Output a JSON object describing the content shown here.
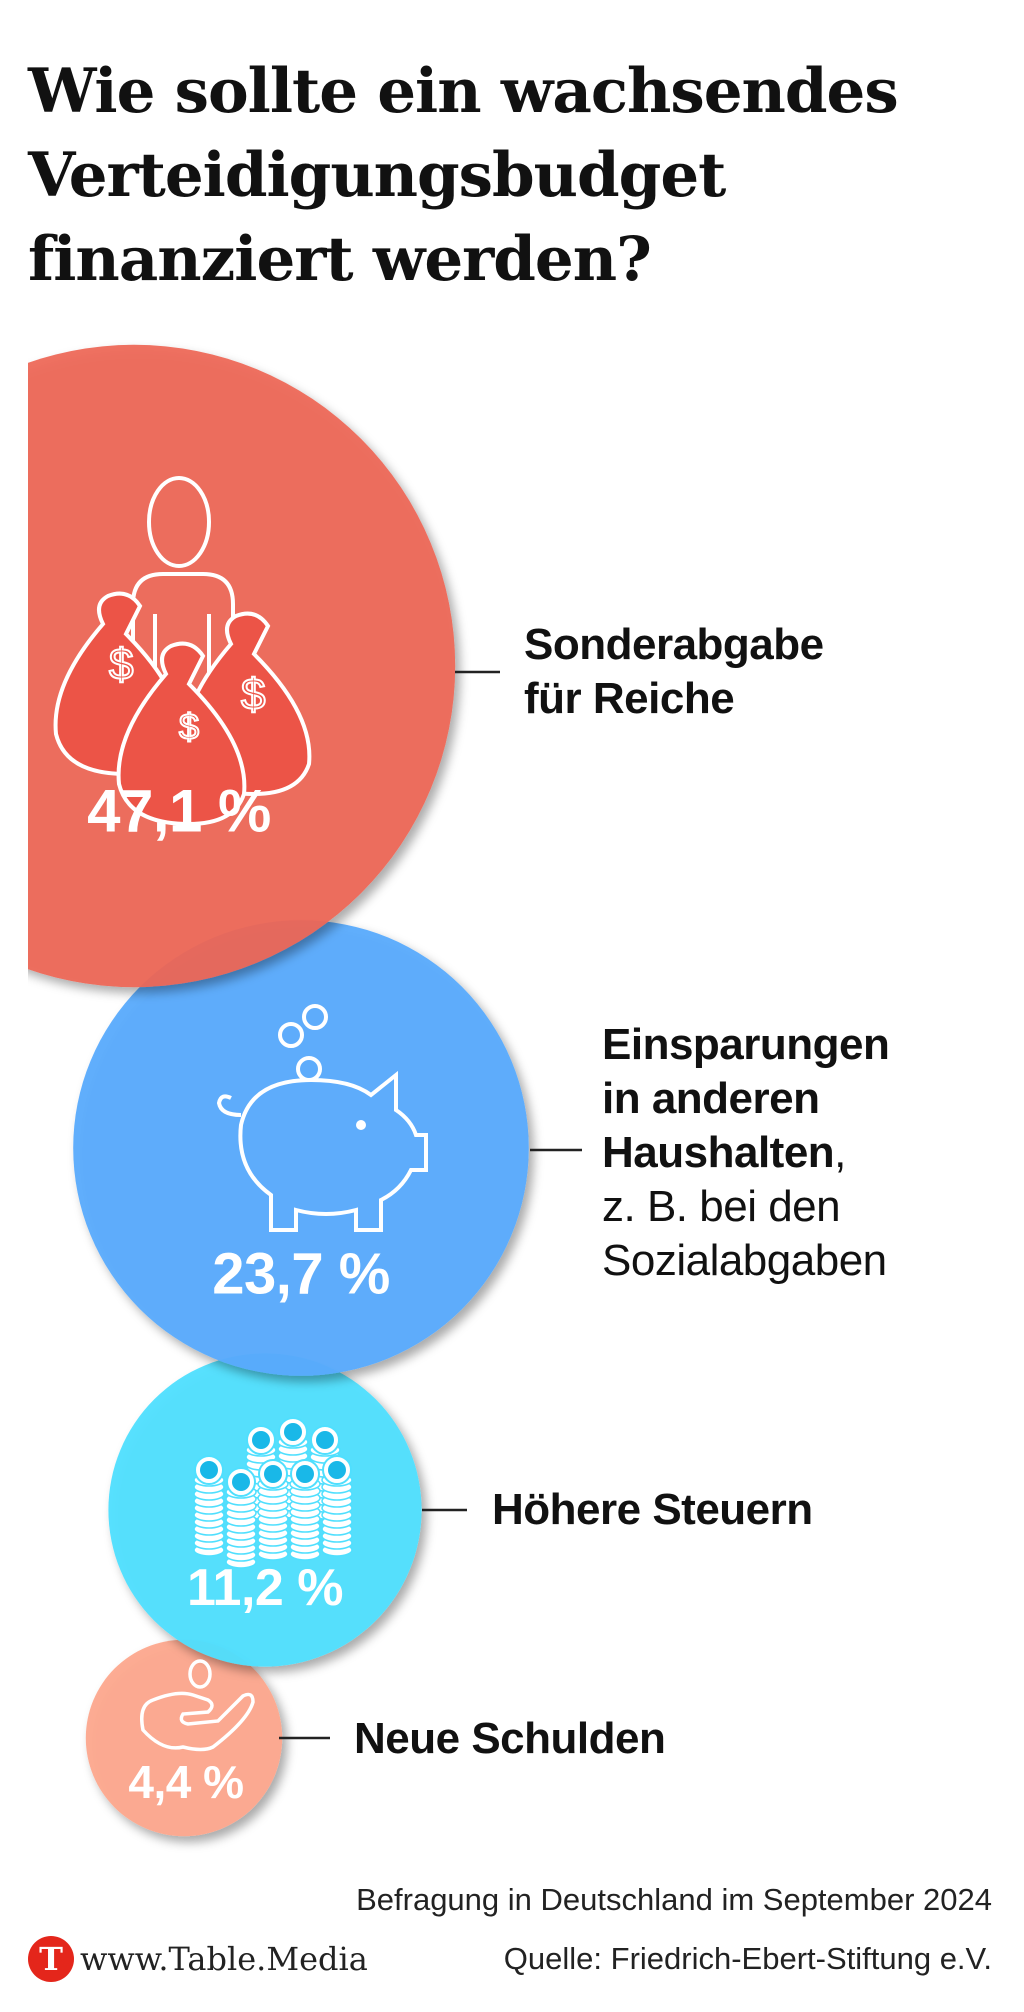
{
  "title": [
    "Wie sollte ein wachsendes",
    "Verteidigungsbudget",
    "finanziert werden?"
  ],
  "chart_data": {
    "type": "scatter",
    "title": "Wie sollte ein wachsendes Verteidigungsbudget finanziert werden?",
    "unit": "%",
    "categories": [
      "Sonderabgabe für Reiche",
      "Einsparungen in anderen Haushalten, z. B. bei den Sozialabgaben",
      "Höhere Steuern",
      "Neue Schulden"
    ],
    "values": [
      47.1,
      23.7,
      11.2,
      4.4
    ],
    "value_labels": [
      "47,1 %",
      "23,7 %",
      "11,2 %",
      "4,4 %"
    ],
    "colors": [
      "#EE6656",
      "#5AABFD",
      "#4FDFFE",
      "#FDA88D"
    ],
    "icons": [
      "money-bags-icon",
      "piggy-bank-icon",
      "coin-stacks-icon",
      "hand-coin-icon"
    ]
  },
  "labels": {
    "l1": [
      "Sonderabgabe",
      "für Reiche"
    ],
    "l2_bold": [
      "Einsparungen",
      "in anderen",
      "Haushalten"
    ],
    "l2_comma": ",",
    "l2_regular": [
      "z. B. bei den",
      "Sozialabgaben"
    ],
    "l3": "Höhere Steuern",
    "l4": "Neue Schulden"
  },
  "note": "Befragung in Deutschland im September 2024",
  "footer": {
    "logo_letter": "T",
    "brand": "www.Table.Media",
    "source": "Quelle: Friedrich-Ebert-Stiftung e.V."
  }
}
